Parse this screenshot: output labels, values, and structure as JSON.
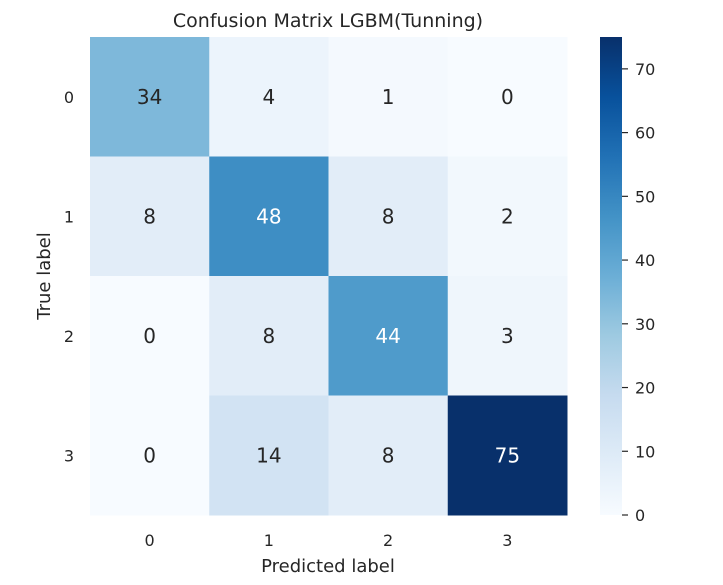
{
  "chart_data": {
    "type": "heatmap",
    "title": "Confusion Matrix LGBM(Tunning)",
    "xlabel": "Predicted label",
    "ylabel": "True label",
    "x_categories": [
      "0",
      "1",
      "2",
      "3"
    ],
    "y_categories": [
      "0",
      "1",
      "2",
      "3"
    ],
    "values": [
      [
        34,
        4,
        1,
        0
      ],
      [
        8,
        48,
        8,
        2
      ],
      [
        0,
        8,
        44,
        3
      ],
      [
        0,
        14,
        8,
        75
      ]
    ],
    "colormap": "Blues",
    "color_range": [
      0,
      75
    ],
    "colorbar": {
      "ticks": [
        0,
        10,
        20,
        30,
        40,
        50,
        60,
        70
      ]
    },
    "text_colors": {
      "dark": "#262626",
      "light": "#ffffff"
    }
  }
}
